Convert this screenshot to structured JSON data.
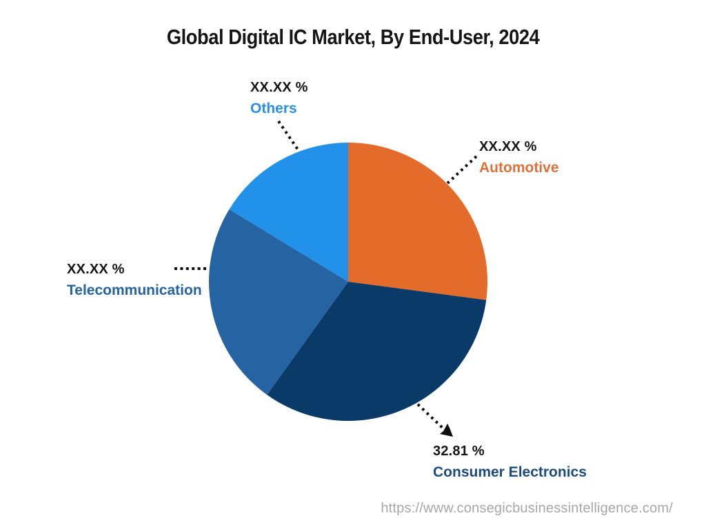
{
  "title": "Global Digital IC Market, By End-User, 2024",
  "watermark_url": "https://www.consegicbusinessintelligence.com/",
  "chart_data": {
    "type": "pie",
    "title": "Global Digital IC Market, By End-User, 2024",
    "start_angle_deg": 0,
    "direction": "clockwise",
    "legend_position": "callout-labels-around-pie",
    "segments": [
      {
        "label": "Automotive",
        "display_value": "XX.XX %",
        "value_pct": 27.1,
        "color": "#E36C2B",
        "label_color": "#E0703A"
      },
      {
        "label": "Consumer Electronics",
        "display_value": "32.81 %",
        "value_pct": 32.81,
        "color": "#093A68",
        "label_color": "#1C4B7D"
      },
      {
        "label": "Telecommunication",
        "display_value": "XX.XX %",
        "value_pct": 23.8,
        "color": "#2563A3",
        "label_color": "#2563A3"
      },
      {
        "label": "Others",
        "display_value": "XX.XX %",
        "value_pct": 16.29,
        "color": "#2191E9",
        "label_color": "#2B8FE8"
      }
    ]
  }
}
